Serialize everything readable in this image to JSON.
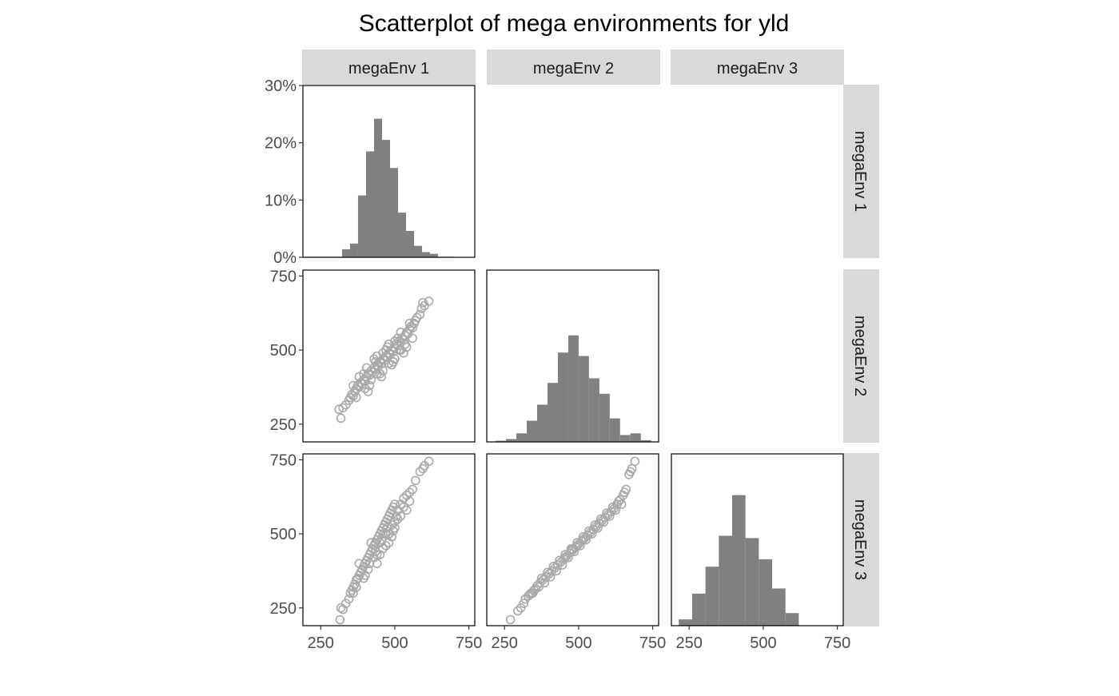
{
  "chart_data": {
    "type": "scatter-matrix",
    "title": "Scatterplot of mega environments for yld",
    "variables": [
      "megaEnv 1",
      "megaEnv 2",
      "megaEnv 3"
    ],
    "axis": {
      "range": [
        190,
        770
      ],
      "ticks": [
        250,
        500,
        750
      ],
      "tick_labels": [
        "250",
        "500",
        "750"
      ]
    },
    "percent_axis": {
      "range": [
        0,
        30
      ],
      "ticks": [
        0,
        10,
        20,
        30
      ],
      "tick_labels": [
        "0%",
        "10%",
        "20%",
        "30%"
      ]
    },
    "colors": {
      "bar": "#808080",
      "point": "#a9a9a9",
      "strip": "#d9d9d9",
      "border": "#000000",
      "text": "#1a1a1a",
      "tick_text": "#4d4d4d"
    },
    "grid": false,
    "histograms": [
      {
        "variable": "megaEnv 1",
        "bin_edges": [
          200,
          225,
          260,
          295,
          322,
          349,
          376,
          403,
          430,
          457,
          484,
          511,
          538,
          565,
          592,
          619,
          646,
          673,
          700
        ],
        "percent": [
          0.1,
          0.1,
          0.1,
          0.1,
          1.4,
          2.4,
          10.8,
          18.5,
          24.2,
          20.5,
          15.6,
          7.8,
          4.6,
          2.0,
          0.9,
          0.6,
          0.1,
          0.1
        ]
      },
      {
        "variable": "megaEnv 2",
        "bin_edges": [
          220,
          255,
          290,
          325,
          360,
          395,
          430,
          465,
          500,
          535,
          570,
          605,
          640,
          675,
          710,
          745
        ],
        "percent": [
          0.2,
          0.5,
          1.5,
          3.7,
          6.5,
          10.3,
          15.6,
          18.6,
          15.0,
          11.1,
          8.4,
          4.1,
          1.2,
          1.5,
          0.3
        ]
      },
      {
        "variable": "megaEnv 3",
        "bin_edges": [
          215,
          260,
          305,
          350,
          395,
          440,
          485,
          530,
          575,
          620,
          665,
          710
        ],
        "percent": [
          1.1,
          5.6,
          10.3,
          15.7,
          22.8,
          15.3,
          11.6,
          6.5,
          2.2
        ]
      }
    ],
    "scatter": [
      {
        "x_variable": "megaEnv 1",
        "y_variable": "megaEnv 2",
        "points": [
          [
            318,
            270
          ],
          [
            312,
            300
          ],
          [
            325,
            305
          ],
          [
            335,
            315
          ],
          [
            345,
            330
          ],
          [
            350,
            340
          ],
          [
            355,
            350
          ],
          [
            360,
            345
          ],
          [
            365,
            360
          ],
          [
            370,
            370
          ],
          [
            375,
            380
          ],
          [
            380,
            375
          ],
          [
            385,
            390
          ],
          [
            390,
            385
          ],
          [
            395,
            400
          ],
          [
            400,
            395
          ],
          [
            405,
            410
          ],
          [
            410,
            420
          ],
          [
            415,
            415
          ],
          [
            420,
            430
          ],
          [
            425,
            425
          ],
          [
            430,
            440
          ],
          [
            435,
            435
          ],
          [
            440,
            450
          ],
          [
            445,
            445
          ],
          [
            450,
            460
          ],
          [
            455,
            455
          ],
          [
            460,
            470
          ],
          [
            465,
            465
          ],
          [
            470,
            480
          ],
          [
            475,
            475
          ],
          [
            480,
            490
          ],
          [
            485,
            485
          ],
          [
            490,
            500
          ],
          [
            495,
            495
          ],
          [
            500,
            510
          ],
          [
            505,
            520
          ],
          [
            510,
            515
          ],
          [
            515,
            530
          ],
          [
            520,
            525
          ],
          [
            525,
            540
          ],
          [
            530,
            535
          ],
          [
            535,
            550
          ],
          [
            540,
            560
          ],
          [
            545,
            555
          ],
          [
            550,
            570
          ],
          [
            555,
            580
          ],
          [
            560,
            575
          ],
          [
            565,
            590
          ],
          [
            570,
            600
          ],
          [
            575,
            610
          ],
          [
            585,
            620
          ],
          [
            590,
            640
          ],
          [
            595,
            660
          ],
          [
            600,
            650
          ],
          [
            615,
            665
          ],
          [
            380,
            410
          ],
          [
            400,
            370
          ],
          [
            420,
            400
          ],
          [
            440,
            480
          ],
          [
            460,
            430
          ],
          [
            480,
            520
          ],
          [
            500,
            470
          ],
          [
            520,
            560
          ],
          [
            540,
            510
          ],
          [
            410,
            360
          ],
          [
            430,
            470
          ],
          [
            450,
            420
          ],
          [
            470,
            500
          ],
          [
            490,
            450
          ],
          [
            510,
            540
          ],
          [
            530,
            490
          ],
          [
            395,
            420
          ],
          [
            415,
            380
          ],
          [
            435,
            460
          ],
          [
            455,
            410
          ],
          [
            475,
            510
          ],
          [
            495,
            460
          ],
          [
            515,
            500
          ],
          [
            535,
            520
          ],
          [
            360,
            380
          ],
          [
            370,
            340
          ],
          [
            440,
            420
          ],
          [
            460,
            490
          ],
          [
            480,
            455
          ],
          [
            500,
            530
          ],
          [
            520,
            500
          ],
          [
            550,
            590
          ],
          [
            560,
            540
          ],
          [
            405,
            440
          ]
        ]
      },
      {
        "x_variable": "megaEnv 1",
        "y_variable": "megaEnv 3",
        "points": [
          [
            315,
            210
          ],
          [
            318,
            250
          ],
          [
            325,
            245
          ],
          [
            335,
            265
          ],
          [
            345,
            280
          ],
          [
            350,
            300
          ],
          [
            355,
            310
          ],
          [
            360,
            320
          ],
          [
            365,
            330
          ],
          [
            370,
            345
          ],
          [
            375,
            350
          ],
          [
            380,
            360
          ],
          [
            385,
            370
          ],
          [
            390,
            380
          ],
          [
            395,
            390
          ],
          [
            400,
            400
          ],
          [
            405,
            410
          ],
          [
            410,
            420
          ],
          [
            415,
            430
          ],
          [
            420,
            440
          ],
          [
            425,
            450
          ],
          [
            430,
            460
          ],
          [
            435,
            470
          ],
          [
            440,
            480
          ],
          [
            445,
            490
          ],
          [
            450,
            500
          ],
          [
            455,
            510
          ],
          [
            460,
            520
          ],
          [
            465,
            530
          ],
          [
            470,
            540
          ],
          [
            475,
            550
          ],
          [
            480,
            560
          ],
          [
            485,
            570
          ],
          [
            490,
            580
          ],
          [
            495,
            590
          ],
          [
            500,
            600
          ],
          [
            505,
            560
          ],
          [
            510,
            580
          ],
          [
            520,
            600
          ],
          [
            530,
            620
          ],
          [
            540,
            630
          ],
          [
            550,
            640
          ],
          [
            560,
            650
          ],
          [
            570,
            680
          ],
          [
            585,
            710
          ],
          [
            595,
            720
          ],
          [
            600,
            730
          ],
          [
            615,
            745
          ],
          [
            380,
            400
          ],
          [
            400,
            360
          ],
          [
            420,
            470
          ],
          [
            440,
            430
          ],
          [
            460,
            500
          ],
          [
            480,
            470
          ],
          [
            500,
            540
          ],
          [
            520,
            560
          ],
          [
            540,
            580
          ],
          [
            410,
            380
          ],
          [
            430,
            420
          ],
          [
            450,
            470
          ],
          [
            470,
            500
          ],
          [
            490,
            530
          ],
          [
            510,
            550
          ],
          [
            395,
            350
          ],
          [
            415,
            400
          ],
          [
            435,
            440
          ],
          [
            455,
            480
          ],
          [
            475,
            520
          ],
          [
            495,
            510
          ],
          [
            360,
            300
          ],
          [
            370,
            320
          ],
          [
            440,
            400
          ],
          [
            460,
            450
          ],
          [
            480,
            500
          ],
          [
            500,
            520
          ],
          [
            530,
            590
          ],
          [
            550,
            610
          ],
          [
            470,
            460
          ],
          [
            450,
            430
          ],
          [
            490,
            490
          ]
        ]
      },
      {
        "x_variable": "megaEnv 2",
        "y_variable": "megaEnv 3",
        "points": [
          [
            270,
            210
          ],
          [
            295,
            240
          ],
          [
            305,
            250
          ],
          [
            315,
            265
          ],
          [
            320,
            280
          ],
          [
            330,
            290
          ],
          [
            340,
            300
          ],
          [
            350,
            310
          ],
          [
            360,
            325
          ],
          [
            370,
            335
          ],
          [
            380,
            345
          ],
          [
            390,
            355
          ],
          [
            400,
            365
          ],
          [
            410,
            375
          ],
          [
            420,
            385
          ],
          [
            430,
            395
          ],
          [
            440,
            405
          ],
          [
            450,
            415
          ],
          [
            460,
            425
          ],
          [
            470,
            435
          ],
          [
            480,
            445
          ],
          [
            490,
            455
          ],
          [
            500,
            465
          ],
          [
            510,
            475
          ],
          [
            520,
            485
          ],
          [
            530,
            495
          ],
          [
            540,
            505
          ],
          [
            550,
            515
          ],
          [
            560,
            525
          ],
          [
            570,
            535
          ],
          [
            580,
            545
          ],
          [
            590,
            555
          ],
          [
            600,
            565
          ],
          [
            610,
            575
          ],
          [
            620,
            585
          ],
          [
            630,
            600
          ],
          [
            640,
            615
          ],
          [
            650,
            630
          ],
          [
            660,
            650
          ],
          [
            670,
            700
          ],
          [
            675,
            710
          ],
          [
            680,
            720
          ],
          [
            690,
            745
          ],
          [
            345,
            300
          ],
          [
            365,
            320
          ],
          [
            385,
            335
          ],
          [
            405,
            355
          ],
          [
            425,
            375
          ],
          [
            445,
            395
          ],
          [
            465,
            420
          ],
          [
            485,
            440
          ],
          [
            505,
            460
          ],
          [
            525,
            480
          ],
          [
            545,
            500
          ],
          [
            565,
            520
          ],
          [
            585,
            540
          ],
          [
            605,
            560
          ],
          [
            625,
            580
          ],
          [
            645,
            600
          ],
          [
            375,
            350
          ],
          [
            395,
            370
          ],
          [
            415,
            390
          ],
          [
            435,
            410
          ],
          [
            455,
            430
          ],
          [
            475,
            450
          ],
          [
            495,
            470
          ],
          [
            515,
            490
          ],
          [
            535,
            510
          ],
          [
            555,
            530
          ],
          [
            575,
            550
          ],
          [
            595,
            570
          ],
          [
            615,
            590
          ],
          [
            635,
            610
          ],
          [
            655,
            640
          ],
          [
            335,
            295
          ],
          [
            355,
            315
          ],
          [
            455,
            420
          ],
          [
            475,
            445
          ],
          [
            495,
            460
          ],
          [
            515,
            480
          ]
        ]
      }
    ]
  }
}
